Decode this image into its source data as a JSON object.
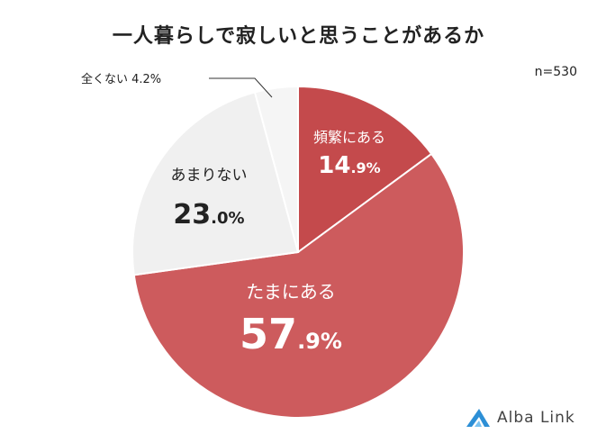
{
  "chart_title": "一人暮らしで寂しいと思うことがあるか",
  "sample_size": "n=530",
  "brand": "Alba Link",
  "colors": {
    "frequent": "#c44a4c",
    "sometimes": "#cd5b5d",
    "rarely": "#f0f0f0",
    "never": "#f5f5f5",
    "outline": "#ffffff",
    "logo": "#2d8fd6"
  },
  "chart_data": {
    "type": "pie",
    "start_angle": 0,
    "direction": "clockwise",
    "slices": [
      {
        "label": "頻繁にある",
        "value": 14.9,
        "value_main": "14",
        "value_frac": ".9%"
      },
      {
        "label": "たまにある",
        "value": 57.9,
        "value_main": "57",
        "value_frac": ".9%"
      },
      {
        "label": "あまりない",
        "value": 23.0,
        "value_main": "23",
        "value_frac": ".0%"
      },
      {
        "label": "全くない",
        "value": 4.2,
        "value_text": "4.2%"
      }
    ]
  }
}
